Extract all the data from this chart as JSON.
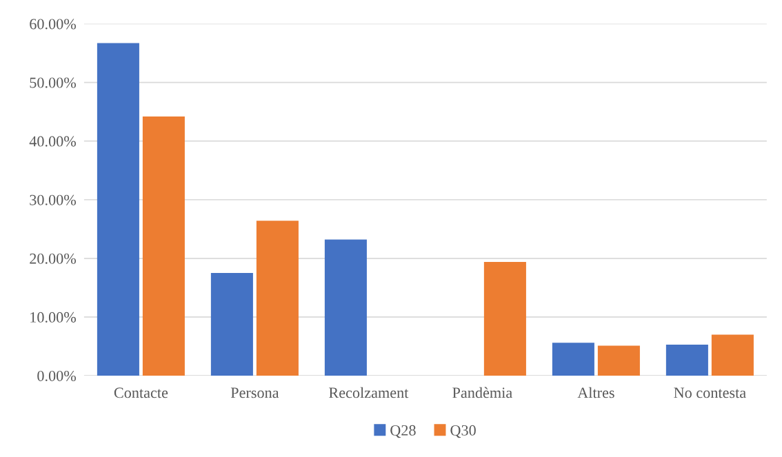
{
  "chart_data": {
    "type": "bar",
    "categories": [
      "Contacte",
      "Persona",
      "Recolzament",
      "Pandèmia",
      "Altres",
      "No contesta"
    ],
    "series": [
      {
        "name": "Q28",
        "color": "#4472c4",
        "values": [
          56.7,
          17.5,
          23.2,
          null,
          5.6,
          5.3
        ]
      },
      {
        "name": "Q30",
        "color": "#ed7d31",
        "values": [
          44.2,
          26.4,
          null,
          19.4,
          5.1,
          7.0
        ]
      }
    ],
    "ylim": [
      0,
      60
    ],
    "yticks": [
      {
        "value": 0,
        "label": "0.00%"
      },
      {
        "value": 10,
        "label": "10.00%"
      },
      {
        "value": 20,
        "label": "20.00%"
      },
      {
        "value": 30,
        "label": "30.00%"
      },
      {
        "value": 40,
        "label": "40.00%"
      },
      {
        "value": 50,
        "label": "50.00%"
      },
      {
        "value": 60,
        "label": "60.00%"
      }
    ],
    "grid": "y",
    "legend": "bottom"
  }
}
